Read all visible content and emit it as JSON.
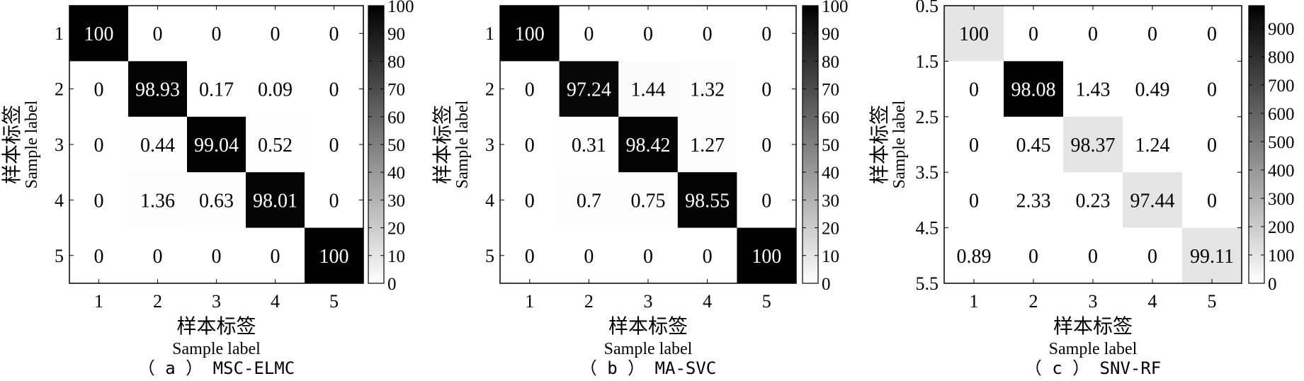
{
  "chart_data": [
    {
      "type": "heatmap",
      "caption": "（ a ） MSC-ELMC",
      "xlabel_cn": "样本标签",
      "xlabel_en": "Sample label",
      "ylabel_cn": "样本标签",
      "ylabel_en": "Sample label",
      "x_ticks": [
        "1",
        "2",
        "3",
        "4",
        "5"
      ],
      "y_ticks": [
        "1",
        "2",
        "3",
        "4",
        "5"
      ],
      "cells": [
        [
          "100",
          "0",
          "0",
          "0",
          "0"
        ],
        [
          "0",
          "98.93",
          "0.17",
          "0.09",
          "0"
        ],
        [
          "0",
          "0.44",
          "99.04",
          "0.52",
          "0"
        ],
        [
          "0",
          "1.36",
          "0.63",
          "98.01",
          "0"
        ],
        [
          "0",
          "0",
          "0",
          "0",
          "100"
        ]
      ],
      "color_min": 0,
      "color_max": 100,
      "colorbar_ticks": [
        "0",
        "10",
        "20",
        "30",
        "40",
        "50",
        "60",
        "70",
        "80",
        "90",
        "100"
      ],
      "colormap": "gray-reversed"
    },
    {
      "type": "heatmap",
      "caption": "（ b ） MA-SVC",
      "xlabel_cn": "样本标签",
      "xlabel_en": "Sample label",
      "ylabel_cn": "样本标签",
      "ylabel_en": "Sample label",
      "x_ticks": [
        "1",
        "2",
        "3",
        "4",
        "5"
      ],
      "y_ticks": [
        "1",
        "2",
        "3",
        "4",
        "5"
      ],
      "cells": [
        [
          "100",
          "0",
          "0",
          "0",
          "0"
        ],
        [
          "0",
          "97.24",
          "1.44",
          "1.32",
          "0"
        ],
        [
          "0",
          "0.31",
          "98.42",
          "1.27",
          "0"
        ],
        [
          "0",
          "0.7",
          "0.75",
          "98.55",
          "0"
        ],
        [
          "0",
          "0",
          "0",
          "0",
          "100"
        ]
      ],
      "color_min": 0,
      "color_max": 100,
      "colorbar_ticks": [
        "0",
        "10",
        "20",
        "30",
        "40",
        "50",
        "60",
        "70",
        "80",
        "90",
        "100"
      ],
      "colormap": "gray-reversed"
    },
    {
      "type": "heatmap",
      "caption": "（ c ） SNV-RF",
      "xlabel_cn": "样本标签",
      "xlabel_en": "Sample label",
      "ylabel_cn": "样本标签",
      "ylabel_en": "Sample label",
      "x_ticks": [
        "1",
        "2",
        "3",
        "4",
        "5"
      ],
      "y_ticks": [
        "0.5",
        "1.5",
        "2.5",
        "3.5",
        "4.5",
        "5.5"
      ],
      "cells": [
        [
          "100",
          "0",
          "0",
          "0",
          "0"
        ],
        [
          "0",
          "98.08",
          "1.43",
          "0.49",
          "0"
        ],
        [
          "0",
          "0.45",
          "98.37",
          "1.24",
          "0"
        ],
        [
          "0",
          "2.33",
          "0.23",
          "97.44",
          "0"
        ],
        [
          "0.89",
          "0",
          "0",
          "0",
          "99.11"
        ]
      ],
      "cell_shades": [
        [
          100,
          0,
          0,
          0,
          0
        ],
        [
          0,
          980,
          0,
          0,
          0
        ],
        [
          0,
          0,
          100,
          0,
          0
        ],
        [
          0,
          0,
          0,
          100,
          0
        ],
        [
          0,
          0,
          0,
          0,
          100
        ]
      ],
      "color_min": 0,
      "color_max": 980,
      "colorbar_ticks": [
        "0",
        "100",
        "200",
        "300",
        "400",
        "500",
        "600",
        "700",
        "800",
        "900"
      ],
      "colormap": "gray-reversed"
    }
  ]
}
